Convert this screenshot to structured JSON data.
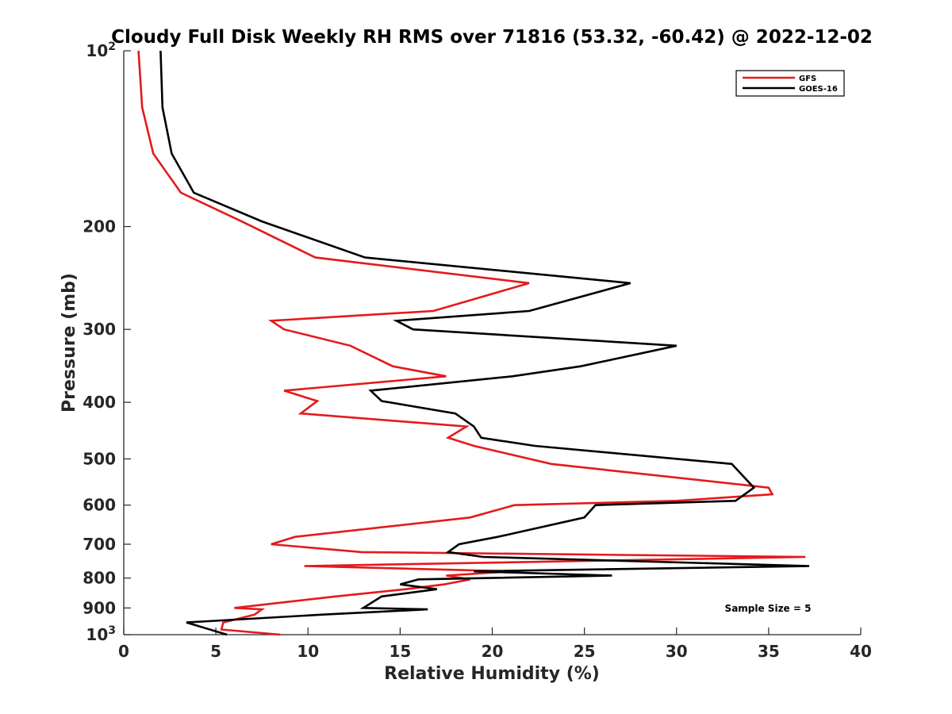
{
  "chart_data": {
    "type": "line",
    "title": "Cloudy Full Disk Weekly RH RMS over 71816 (53.32, -60.42) @ 2022-12-02",
    "xlabel": "Relative Humidity (%)",
    "ylabel": "Pressure (mb)",
    "xlim": [
      0,
      40
    ],
    "ylim": [
      100,
      1000
    ],
    "y_scale": "log",
    "y_reversed": true,
    "xticks": [
      0,
      5,
      10,
      15,
      20,
      25,
      30,
      35,
      40
    ],
    "yticks": [
      {
        "value": 100,
        "base": "10",
        "exp": "2"
      },
      {
        "value": 200,
        "label": "200"
      },
      {
        "value": 300,
        "label": "300"
      },
      {
        "value": 400,
        "label": "400"
      },
      {
        "value": 500,
        "label": "500"
      },
      {
        "value": 600,
        "label": "600"
      },
      {
        "value": 700,
        "label": "700"
      },
      {
        "value": 800,
        "label": "800"
      },
      {
        "value": 900,
        "label": "900"
      },
      {
        "value": 1000,
        "base": "10",
        "exp": "3"
      }
    ],
    "grid": false,
    "legend_position": "top-right",
    "annotation": "Sample Size = 5",
    "series": [
      {
        "name": "GFS",
        "color": "#e41a1c",
        "points": [
          [
            0.8,
            100
          ],
          [
            1.0,
            125
          ],
          [
            1.6,
            150
          ],
          [
            3.1,
            175
          ],
          [
            6.4,
            196
          ],
          [
            10.4,
            226
          ],
          [
            22.0,
            250
          ],
          [
            16.8,
            279
          ],
          [
            8.0,
            290
          ],
          [
            8.7,
            300
          ],
          [
            12.3,
            320
          ],
          [
            14.6,
            347
          ],
          [
            17.5,
            361
          ],
          [
            8.7,
            382
          ],
          [
            10.5,
            398
          ],
          [
            9.6,
            418
          ],
          [
            18.6,
            440
          ],
          [
            17.6,
            460
          ],
          [
            19.0,
            475
          ],
          [
            23.2,
            510
          ],
          [
            35.0,
            560
          ],
          [
            35.2,
            575
          ],
          [
            30.0,
            590
          ],
          [
            21.2,
            600
          ],
          [
            18.8,
            630
          ],
          [
            9.3,
            680
          ],
          [
            8.0,
            700
          ],
          [
            12.9,
            722
          ],
          [
            37.0,
            736
          ],
          [
            9.8,
            763
          ],
          [
            21.1,
            779
          ],
          [
            17.5,
            792
          ],
          [
            18.8,
            804
          ],
          [
            17.4,
            820
          ],
          [
            15.3,
            836
          ],
          [
            11.5,
            860
          ],
          [
            6.0,
            900
          ],
          [
            7.5,
            905
          ],
          [
            7.1,
            924
          ],
          [
            5.4,
            953
          ],
          [
            5.3,
            980
          ],
          [
            8.5,
            1000
          ]
        ]
      },
      {
        "name": "GOES-16",
        "color": "#000000",
        "points": [
          [
            2.0,
            100
          ],
          [
            2.1,
            125
          ],
          [
            2.6,
            150
          ],
          [
            3.8,
            175
          ],
          [
            7.5,
            196
          ],
          [
            13.1,
            226
          ],
          [
            27.5,
            250
          ],
          [
            22.0,
            279
          ],
          [
            14.8,
            290
          ],
          [
            15.7,
            300
          ],
          [
            30.0,
            320
          ],
          [
            24.8,
            347
          ],
          [
            21.1,
            361
          ],
          [
            13.4,
            382
          ],
          [
            14.0,
            398
          ],
          [
            18.0,
            418
          ],
          [
            19.0,
            440
          ],
          [
            19.4,
            460
          ],
          [
            22.3,
            475
          ],
          [
            33.0,
            510
          ],
          [
            34.2,
            560
          ],
          [
            33.7,
            575
          ],
          [
            33.2,
            590
          ],
          [
            25.6,
            600
          ],
          [
            25.0,
            630
          ],
          [
            20.3,
            680
          ],
          [
            18.2,
            700
          ],
          [
            17.6,
            722
          ],
          [
            19.5,
            736
          ],
          [
            37.2,
            763
          ],
          [
            19.0,
            779
          ],
          [
            26.5,
            792
          ],
          [
            16.0,
            804
          ],
          [
            15.0,
            820
          ],
          [
            17.0,
            836
          ],
          [
            14.0,
            860
          ],
          [
            13.0,
            900
          ],
          [
            16.5,
            905
          ],
          [
            10.8,
            924
          ],
          [
            3.4,
            953
          ],
          [
            5.6,
            1000
          ]
        ]
      }
    ]
  }
}
